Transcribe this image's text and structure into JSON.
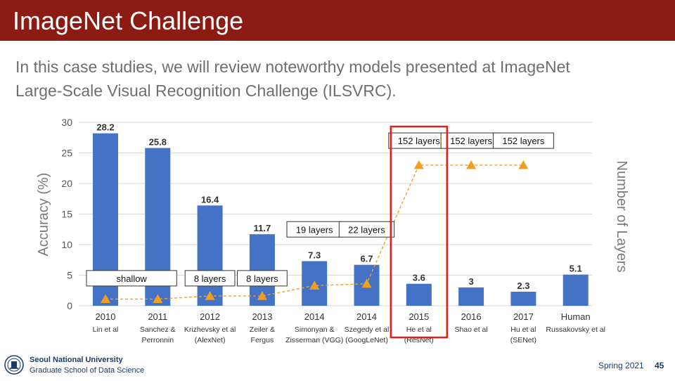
{
  "slide": {
    "title": "ImageNet Challenge",
    "subtitle_line1": "In this case studies, we will review noteworthy models presented at ImageNet",
    "subtitle_line2": "Large-Scale Visual Recognition Challenge (ILSVRC)."
  },
  "footer": {
    "university": "Seoul National University",
    "school": "Graduate School of Data Science",
    "term": "Spring 2021",
    "page": "45"
  },
  "colors": {
    "header": "#8c1c13",
    "bar": "#4472c4",
    "marker": "#f0a020",
    "highlight": "#e02020"
  },
  "chart_data": {
    "type": "bar",
    "ylabel": "Accuracy (%)",
    "y2label": "Number of Layers",
    "ylim": [
      0,
      30
    ],
    "yticks": [
      "0",
      "5",
      "10",
      "15",
      "20",
      "25",
      "30"
    ],
    "grid": true,
    "categories": [
      "2010",
      "2011",
      "2012",
      "2013",
      "2014",
      "2014",
      "2015",
      "2016",
      "2017",
      "Human"
    ],
    "sublabels": [
      [
        "Lin et al"
      ],
      [
        "Sanchez &",
        "Perronnin"
      ],
      [
        "Krizhevsky et al",
        "(AlexNet)"
      ],
      [
        "Zeiler &",
        "Fergus"
      ],
      [
        "Simonyan &",
        "Zisserman (VGG)"
      ],
      [
        "Szegedy et al",
        "(GoogLeNet)"
      ],
      [
        "He et al",
        "(ResNet)"
      ],
      [
        "Shao et al"
      ],
      [
        "Hu et al",
        "(SENet)"
      ],
      [
        "Russakovsky et al"
      ]
    ],
    "values": [
      28.2,
      25.8,
      16.4,
      11.7,
      7.3,
      6.7,
      3.6,
      3,
      2.3,
      5.1
    ],
    "value_labels": [
      "28.2",
      "25.8",
      "16.4",
      "11.7",
      "7.3",
      "6.7",
      "3.6",
      "3",
      "2.3",
      "5.1"
    ],
    "layers_series": [
      1.1,
      1.1,
      1.6,
      1.6,
      3.3,
      3.6,
      23,
      23,
      23,
      null
    ],
    "layer_labels": [
      {
        "text": "shallow",
        "from": 0,
        "to": 1,
        "level": 4.5
      },
      {
        "text": "8 layers",
        "index": 2,
        "level": 4.5
      },
      {
        "text": "8 layers",
        "index": 3,
        "level": 4.5
      },
      {
        "text": "19 layers",
        "index": 4,
        "level": 12.5
      },
      {
        "text": "22 layers",
        "index": 5,
        "level": 12.5
      },
      {
        "text": "152 layers",
        "index": 6,
        "level": 27
      },
      {
        "text": "152 layers",
        "index": 7,
        "level": 27
      },
      {
        "text": "152 layers",
        "index": 8,
        "level": 27
      }
    ],
    "highlight_index": 6
  }
}
